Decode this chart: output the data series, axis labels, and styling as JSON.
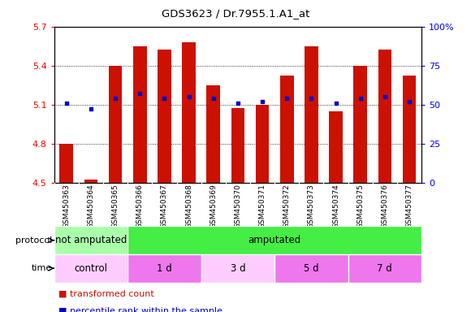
{
  "title": "GDS3623 / Dr.7955.1.A1_at",
  "samples": [
    "GSM450363",
    "GSM450364",
    "GSM450365",
    "GSM450366",
    "GSM450367",
    "GSM450368",
    "GSM450369",
    "GSM450370",
    "GSM450371",
    "GSM450372",
    "GSM450373",
    "GSM450374",
    "GSM450375",
    "GSM450376",
    "GSM450377"
  ],
  "bar_values": [
    4.8,
    4.52,
    5.4,
    5.55,
    5.52,
    5.58,
    5.25,
    5.07,
    5.1,
    5.32,
    5.55,
    5.05,
    5.4,
    5.52,
    5.32
  ],
  "percentile_values": [
    51,
    47,
    54,
    57,
    54,
    55,
    54,
    51,
    52,
    54,
    54,
    51,
    54,
    55,
    52
  ],
  "ylim_left": [
    4.5,
    5.7
  ],
  "ylim_right": [
    0,
    100
  ],
  "yticks_left": [
    4.5,
    4.8,
    5.1,
    5.4,
    5.7
  ],
  "yticks_right": [
    0,
    25,
    50,
    75,
    100
  ],
  "ytick_labels_right": [
    "0",
    "25",
    "50",
    "75",
    "100%"
  ],
  "bar_color": "#cc1100",
  "percentile_color": "#0000cc",
  "xtick_bg": "#c8c8c8",
  "protocol_groups": [
    {
      "label": "not amputated",
      "start": 0,
      "end": 3,
      "color": "#aaffaa"
    },
    {
      "label": "amputated",
      "start": 3,
      "end": 15,
      "color": "#44ee44"
    }
  ],
  "time_groups": [
    {
      "label": "control",
      "start": 0,
      "end": 3,
      "color": "#ffccff"
    },
    {
      "label": "1 d",
      "start": 3,
      "end": 6,
      "color": "#ee77ee"
    },
    {
      "label": "3 d",
      "start": 6,
      "end": 9,
      "color": "#ffccff"
    },
    {
      "label": "5 d",
      "start": 9,
      "end": 12,
      "color": "#ee77ee"
    },
    {
      "label": "7 d",
      "start": 12,
      "end": 15,
      "color": "#ee77ee"
    }
  ],
  "legend_items": [
    {
      "label": "transformed count",
      "color": "#cc1100"
    },
    {
      "label": "percentile rank within the sample",
      "color": "#0000cc"
    }
  ]
}
